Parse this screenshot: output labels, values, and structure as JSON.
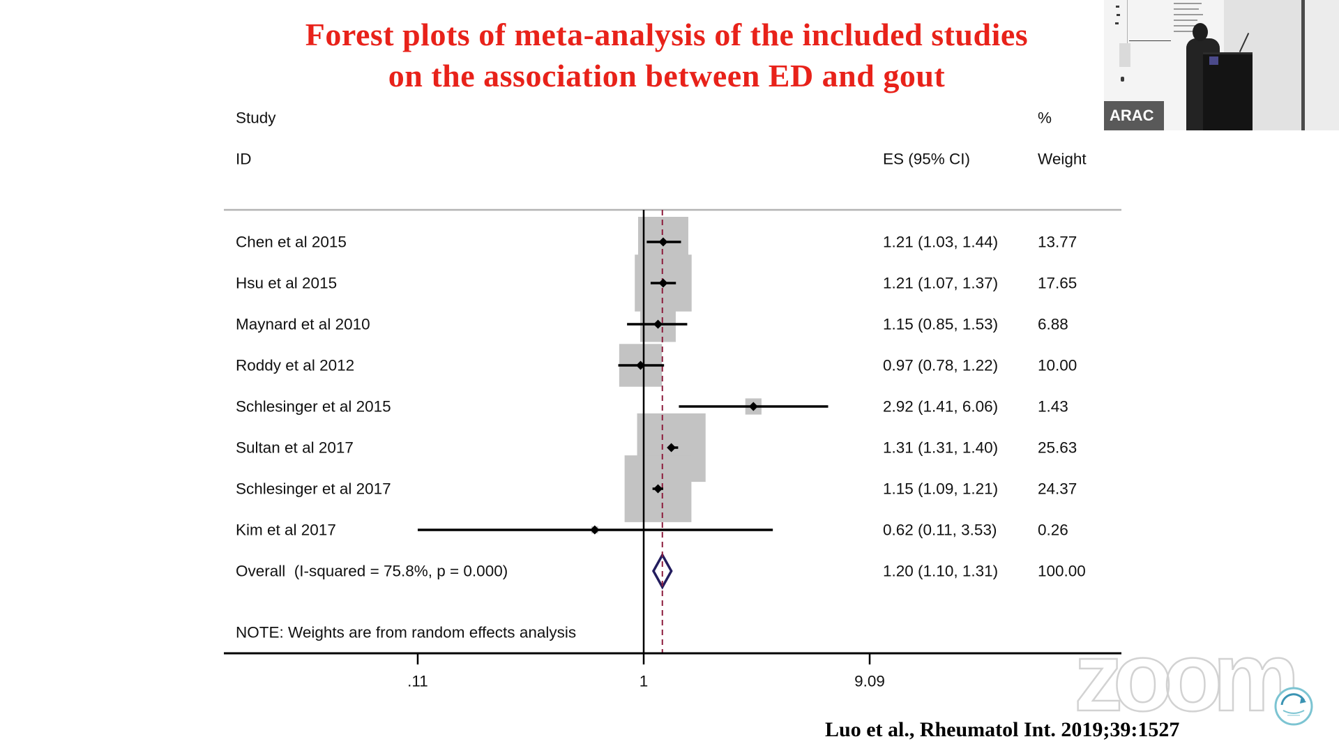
{
  "chart_data": {
    "type": "scatter",
    "title": [
      "Forest plots of meta-analysis of the included studies",
      "on the association between ED and gout"
    ],
    "x_scale": "log",
    "x_ticks": [
      {
        "value": 0.11,
        "label": ".11"
      },
      {
        "value": 1,
        "label": "1"
      },
      {
        "value": 9.09,
        "label": "9.09"
      }
    ],
    "null_line": 1,
    "grid": false,
    "headers": {
      "study": "Study",
      "id": "ID",
      "es": "ES (95% CI)",
      "pct": "%",
      "weight": "Weight"
    },
    "studies": [
      {
        "name": "Chen et al 2015",
        "es": 1.21,
        "ci": [
          1.03,
          1.44
        ],
        "weight": 13.77
      },
      {
        "name": "Hsu et al 2015",
        "es": 1.21,
        "ci": [
          1.07,
          1.37
        ],
        "weight": 17.65
      },
      {
        "name": "Maynard et al 2010",
        "es": 1.15,
        "ci": [
          0.85,
          1.53
        ],
        "weight": 6.88
      },
      {
        "name": "Roddy et al 2012",
        "es": 0.97,
        "ci": [
          0.78,
          1.22
        ],
        "weight": 10.0
      },
      {
        "name": "Schlesinger et al 2015",
        "es": 2.92,
        "ci": [
          1.41,
          6.06
        ],
        "weight": 1.43
      },
      {
        "name": "Sultan et al 2017",
        "es": 1.31,
        "ci": [
          1.31,
          1.4
        ],
        "weight": 25.63
      },
      {
        "name": "Schlesinger et al 2017",
        "es": 1.15,
        "ci": [
          1.09,
          1.21
        ],
        "weight": 24.37
      },
      {
        "name": "Kim et al 2017",
        "es": 0.62,
        "ci": [
          0.11,
          3.53
        ],
        "weight": 0.26
      }
    ],
    "overall": {
      "label": "Overall  (I-squared = 75.8%, p = 0.000)",
      "es": 1.2,
      "ci": [
        1.1,
        1.31
      ],
      "weight": 100.0
    },
    "note": "NOTE: Weights are from random effects analysis"
  },
  "citation": "Luo et al., Rheumatol Int. 2019;39:1527",
  "video_tile": {
    "label": "ARAC"
  },
  "watermark": {
    "text": "zoom"
  },
  "colors": {
    "title": "#e8221a",
    "weight_box": "#c3c3c3",
    "marker": "#000000",
    "overall_diamond": "#231d5e",
    "pooled_line": "#8c1c3c",
    "separator": "#b3b3b3",
    "logo": "#7cc4d2"
  }
}
